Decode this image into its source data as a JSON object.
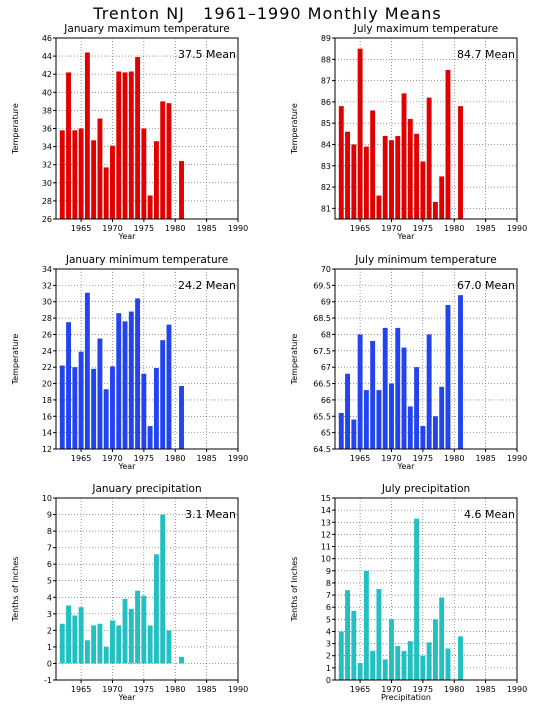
{
  "page": {
    "title": "Trenton NJ   1961–1990 Monthly Means"
  },
  "chart_data": [
    {
      "type": "bar",
      "title": "January maximum temperature",
      "mean_label": "37.5  Mean",
      "xlabel": "Year",
      "ylabel": "Temperature",
      "color": "#e00000",
      "xlim": [
        1961,
        1990
      ],
      "ylim": [
        26,
        46
      ],
      "yticks": [
        26,
        28,
        30,
        32,
        34,
        36,
        38,
        40,
        42,
        44,
        46
      ],
      "xticks": [
        1965,
        1970,
        1975,
        1980,
        1985,
        1990
      ],
      "x": [
        1962,
        1963,
        1964,
        1965,
        1966,
        1967,
        1968,
        1969,
        1970,
        1971,
        1972,
        1973,
        1974,
        1975,
        1976,
        1977,
        1978,
        1979,
        1980,
        1981
      ],
      "values": [
        35.8,
        42.2,
        35.8,
        36.0,
        44.4,
        34.7,
        37.1,
        31.7,
        34.1,
        42.3,
        42.2,
        42.3,
        43.9,
        36.0,
        28.6,
        34.6,
        39.0,
        38.8,
        null,
        32.4
      ]
    },
    {
      "type": "bar",
      "title": "July maximum temperature",
      "mean_label": "84.7  Mean",
      "xlabel": "Year",
      "ylabel": "Temperature",
      "color": "#e00000",
      "xlim": [
        1961,
        1990
      ],
      "ylim": [
        80.5,
        89
      ],
      "yticks": [
        81,
        82,
        83,
        84,
        85,
        86,
        87,
        88,
        89
      ],
      "xticks": [
        1965,
        1970,
        1975,
        1980,
        1985,
        1990
      ],
      "x": [
        1962,
        1963,
        1964,
        1965,
        1966,
        1967,
        1968,
        1969,
        1970,
        1971,
        1972,
        1973,
        1974,
        1975,
        1976,
        1977,
        1978,
        1979,
        1980,
        1981
      ],
      "values": [
        85.8,
        84.6,
        84.0,
        88.5,
        83.9,
        85.6,
        81.6,
        84.4,
        84.2,
        84.4,
        86.4,
        85.2,
        84.5,
        83.2,
        86.2,
        81.3,
        82.5,
        87.5,
        null,
        85.8
      ]
    },
    {
      "type": "bar",
      "title": "January minimum temperature",
      "mean_label": "24.2  Mean",
      "xlabel": "Year",
      "ylabel": "Temperature",
      "color": "#2244ee",
      "xlim": [
        1961,
        1990
      ],
      "ylim": [
        12,
        34
      ],
      "yticks": [
        12,
        14,
        16,
        18,
        20,
        22,
        24,
        26,
        28,
        30,
        32,
        34
      ],
      "xticks": [
        1965,
        1970,
        1975,
        1980,
        1985,
        1990
      ],
      "x": [
        1962,
        1963,
        1964,
        1965,
        1966,
        1967,
        1968,
        1969,
        1970,
        1971,
        1972,
        1973,
        1974,
        1975,
        1976,
        1977,
        1978,
        1979,
        1980,
        1981
      ],
      "values": [
        22.2,
        27.5,
        22.0,
        23.9,
        31.1,
        21.8,
        25.5,
        19.3,
        22.1,
        28.6,
        27.6,
        28.8,
        30.4,
        21.2,
        14.8,
        21.9,
        25.3,
        27.2,
        null,
        19.7
      ]
    },
    {
      "type": "bar",
      "title": "July minimum temperature",
      "mean_label": "67.0  Mean",
      "xlabel": "Year",
      "ylabel": "Temperature",
      "color": "#2244ee",
      "xlim": [
        1961,
        1990
      ],
      "ylim": [
        64.5,
        70
      ],
      "yticks": [
        64.5,
        65,
        65.5,
        66,
        66.5,
        67,
        67.5,
        68,
        68.5,
        69,
        69.5,
        70
      ],
      "ytick_labels": [
        "64.5",
        "65",
        "65.5",
        "66",
        "66.5",
        "67",
        "67.5",
        "68",
        "68.5",
        "69",
        "69.5",
        "70"
      ],
      "xticks": [
        1965,
        1970,
        1975,
        1980,
        1985,
        1990
      ],
      "x": [
        1962,
        1963,
        1964,
        1965,
        1966,
        1967,
        1968,
        1969,
        1970,
        1971,
        1972,
        1973,
        1974,
        1975,
        1976,
        1977,
        1978,
        1979,
        1980,
        1981
      ],
      "values": [
        65.6,
        66.8,
        65.4,
        68.0,
        66.3,
        67.8,
        66.3,
        68.2,
        66.5,
        68.2,
        67.6,
        65.8,
        67.0,
        65.2,
        68.0,
        65.5,
        66.4,
        68.9,
        null,
        69.2
      ]
    },
    {
      "type": "bar",
      "title": "January precipitation",
      "mean_label": "3.1  Mean",
      "xlabel": "Year",
      "ylabel": "Tenths of Inches",
      "color": "#22c0c0",
      "xlim": [
        1961,
        1990
      ],
      "ylim": [
        -1,
        10
      ],
      "yticks": [
        -1,
        0,
        1,
        2,
        3,
        4,
        5,
        6,
        7,
        8,
        9,
        10
      ],
      "xticks": [
        1965,
        1970,
        1975,
        1980,
        1985,
        1990
      ],
      "x": [
        1962,
        1963,
        1964,
        1965,
        1966,
        1967,
        1968,
        1969,
        1970,
        1971,
        1972,
        1973,
        1974,
        1975,
        1976,
        1977,
        1978,
        1979,
        1980,
        1981
      ],
      "values": [
        2.4,
        3.5,
        2.9,
        3.4,
        1.4,
        2.3,
        2.4,
        1.0,
        2.6,
        2.3,
        3.9,
        3.3,
        4.4,
        4.1,
        2.3,
        6.6,
        9.0,
        2.0,
        null,
        0.4
      ]
    },
    {
      "type": "bar",
      "title": "July precipitation",
      "mean_label": "4.6  Mean",
      "xlabel": "Precipitation",
      "ylabel": "Tenths of Inches",
      "color": "#22c0c0",
      "xlim": [
        1961,
        1990
      ],
      "ylim": [
        0,
        15
      ],
      "yticks": [
        0,
        1,
        2,
        3,
        4,
        5,
        6,
        7,
        8,
        9,
        10,
        11,
        12,
        13,
        14,
        15
      ],
      "xticks": [
        1965,
        1970,
        1975,
        1980,
        1985,
        1990
      ],
      "x": [
        1962,
        1963,
        1964,
        1965,
        1966,
        1967,
        1968,
        1969,
        1970,
        1971,
        1972,
        1973,
        1974,
        1975,
        1976,
        1977,
        1978,
        1979,
        1980,
        1981
      ],
      "values": [
        4.0,
        7.4,
        5.7,
        1.4,
        9.0,
        2.4,
        7.5,
        1.7,
        5.0,
        2.8,
        2.4,
        3.2,
        13.3,
        2.0,
        3.1,
        5.0,
        6.8,
        2.6,
        null,
        3.6
      ]
    }
  ]
}
